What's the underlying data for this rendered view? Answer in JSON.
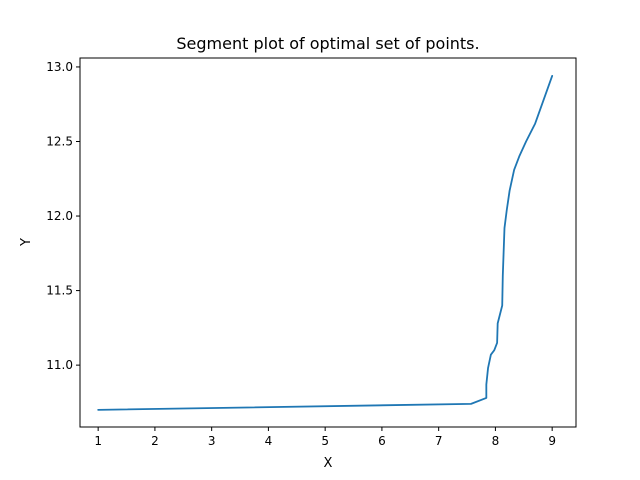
{
  "chart_data": {
    "type": "line",
    "title": "Segment plot of optimal set of points.",
    "xlabel": "X",
    "ylabel": "Y",
    "xlim": [
      0.68,
      9.42
    ],
    "ylim": [
      10.585,
      13.06
    ],
    "xticks": [
      1,
      2,
      3,
      4,
      5,
      6,
      7,
      8,
      9
    ],
    "xtick_labels": [
      "1",
      "2",
      "3",
      "4",
      "5",
      "6",
      "7",
      "8",
      "9"
    ],
    "yticks": [
      11.0,
      11.5,
      12.0,
      12.5,
      13.0
    ],
    "ytick_labels": [
      "11.0",
      "11.5",
      "12.0",
      "12.5",
      "13.0"
    ],
    "grid": false,
    "series": [
      {
        "color": "#1f77b4",
        "x": [
          1.0,
          7.57,
          7.84,
          7.84,
          7.87,
          7.92,
          7.98,
          8.03,
          8.04,
          8.12,
          8.13,
          8.16,
          8.2,
          8.25,
          8.33,
          8.42,
          8.54,
          8.7,
          9.0
        ],
        "y": [
          10.7,
          10.74,
          10.78,
          10.87,
          10.98,
          11.07,
          11.1,
          11.15,
          11.28,
          11.4,
          11.6,
          11.92,
          12.04,
          12.17,
          12.31,
          12.4,
          12.5,
          12.62,
          12.94
        ]
      }
    ]
  }
}
